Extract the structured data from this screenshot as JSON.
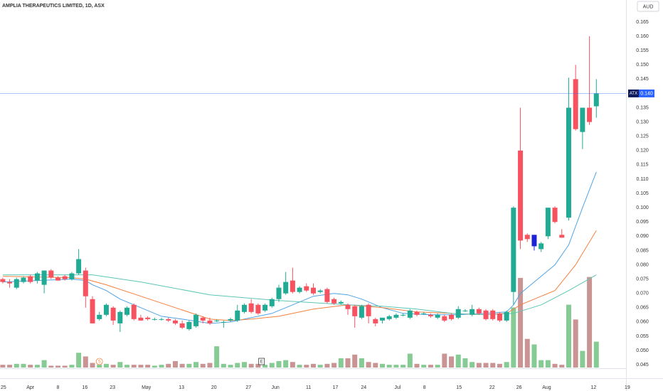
{
  "chart_data": {
    "type": "candlestick",
    "title": "AMPLIA THERAPEUTICS LIMITED, 1D, ASX",
    "currency": "AUD",
    "symbol_tag": "ATX",
    "last_price": 0.14,
    "last_price_label": "0.140",
    "last_price_color": "#2962ff",
    "up_color": "#22ab94",
    "down_color": "#f7525f",
    "volume_up_color": "rgba(34,160,60,0.55)",
    "volume_down_color": "rgba(160,60,60,0.55)",
    "highlight": {
      "index": 77,
      "color": "#1e22d6"
    },
    "xlim": [
      -0.4,
      90.3
    ],
    "xticks": [
      {
        "value": 0.1,
        "label": "25"
      },
      {
        "value": 4.0,
        "label": "Apr"
      },
      {
        "value": 8.0,
        "label": "8"
      },
      {
        "value": 11.9,
        "label": "16"
      },
      {
        "value": 15.9,
        "label": "23"
      },
      {
        "value": 20.8,
        "label": "May"
      },
      {
        "value": 25.9,
        "label": "13"
      },
      {
        "value": 30.6,
        "label": "20"
      },
      {
        "value": 35.6,
        "label": "27"
      },
      {
        "value": 39.5,
        "label": "Jun"
      },
      {
        "value": 44.3,
        "label": "11"
      },
      {
        "value": 48.2,
        "label": "17"
      },
      {
        "value": 52.3,
        "label": "24"
      },
      {
        "value": 57.2,
        "label": "Jul"
      },
      {
        "value": 61.1,
        "label": "8"
      },
      {
        "value": 66.1,
        "label": "15"
      },
      {
        "value": 70.9,
        "label": "22"
      },
      {
        "value": 74.8,
        "label": "26"
      },
      {
        "value": 78.8,
        "label": "Aug"
      },
      {
        "value": 85.6,
        "label": "12"
      },
      {
        "value": 90.5,
        "label": "19"
      }
    ],
    "ylim": [
      0.0433,
      0.1727
    ],
    "yticks": [
      0.045,
      {
        "value": 0.05,
        "label": "0.050"
      },
      0.055,
      {
        "value": 0.06,
        "label": "0.060"
      },
      0.065,
      {
        "value": 0.07,
        "label": "0.070"
      },
      0.075,
      {
        "value": 0.08,
        "label": "0.080"
      },
      0.085,
      {
        "value": 0.09,
        "label": "0.090"
      },
      0.095,
      {
        "value": 0.1,
        "label": "0.100"
      },
      0.105,
      {
        "value": 0.11,
        "label": "0.110"
      },
      0.115,
      {
        "value": 0.12,
        "label": "0.120"
      },
      0.125,
      {
        "value": 0.13,
        "label": "0.130"
      },
      0.135,
      {
        "value": 0.14,
        "label": "0.140"
      },
      0.145,
      {
        "value": 0.15,
        "label": "0.150"
      },
      0.155,
      {
        "value": 0.16,
        "label": "0.160"
      },
      0.165
    ],
    "open": [
      0.075,
      0.074,
      0.072,
      0.074,
      0.076,
      0.0745,
      0.073,
      0.078,
      0.0755,
      0.076,
      0.075,
      0.077,
      0.078,
      0.068,
      0.061,
      0.0625,
      0.065,
      0.0595,
      0.0625,
      0.066,
      0.0615,
      0.0615,
      0.061,
      0.061,
      0.061,
      0.0605,
      0.0595,
      0.0575,
      0.0585,
      0.0615,
      0.0605,
      0.0605,
      0.06,
      0.0605,
      0.0605,
      0.0635,
      0.0665,
      0.066,
      0.064,
      0.0655,
      0.068,
      0.07,
      0.0745,
      0.0705,
      0.0725,
      0.072,
      0.0705,
      0.0715,
      0.068,
      0.0665,
      0.066,
      0.0655,
      0.0615,
      0.066,
      0.061,
      0.0605,
      0.061,
      0.0615,
      0.0625,
      0.0615,
      0.0635,
      0.063,
      0.0625,
      0.0615,
      0.062,
      0.0625,
      0.0615,
      0.064,
      0.0625,
      0.0645,
      0.064,
      0.064,
      0.063,
      0.0605,
      0.0705,
      0.12,
      0.0905,
      0.0865,
      0.0855,
      0.09,
      0.1,
      0.0905,
      0.0965,
      0.145,
      0.1265,
      0.135,
      0.1355
    ],
    "high": [
      0.0755,
      0.075,
      0.0755,
      0.076,
      0.0765,
      0.0775,
      0.078,
      0.0785,
      0.076,
      0.0765,
      0.0775,
      0.0855,
      0.079,
      0.069,
      0.0635,
      0.0665,
      0.0655,
      0.064,
      0.0655,
      0.0665,
      0.0625,
      0.062,
      0.0615,
      0.0615,
      0.0615,
      0.061,
      0.0605,
      0.0605,
      0.063,
      0.062,
      0.0615,
      0.061,
      0.0605,
      0.0615,
      0.066,
      0.0665,
      0.068,
      0.0665,
      0.0665,
      0.0685,
      0.073,
      0.0775,
      0.079,
      0.0725,
      0.0735,
      0.0735,
      0.0715,
      0.072,
      0.0685,
      0.0675,
      0.0665,
      0.066,
      0.066,
      0.0665,
      0.0615,
      0.0615,
      0.0625,
      0.063,
      0.063,
      0.0645,
      0.064,
      0.0635,
      0.063,
      0.063,
      0.0625,
      0.063,
      0.0655,
      0.0645,
      0.066,
      0.065,
      0.0645,
      0.0645,
      0.0635,
      0.064,
      0.1005,
      0.135,
      0.091,
      0.0905,
      0.088,
      0.1,
      0.1005,
      0.0925,
      0.1455,
      0.15,
      0.135,
      0.16,
      0.145
    ],
    "low": [
      0.0735,
      0.072,
      0.0715,
      0.0735,
      0.0735,
      0.0735,
      0.07,
      0.075,
      0.0745,
      0.0745,
      0.0745,
      0.0765,
      0.065,
      0.0595,
      0.0605,
      0.062,
      0.059,
      0.0565,
      0.062,
      0.0605,
      0.0605,
      0.0605,
      0.0605,
      0.0605,
      0.06,
      0.059,
      0.0575,
      0.057,
      0.058,
      0.0595,
      0.059,
      0.06,
      0.058,
      0.06,
      0.06,
      0.063,
      0.063,
      0.0625,
      0.0635,
      0.065,
      0.067,
      0.0695,
      0.07,
      0.07,
      0.0705,
      0.0695,
      0.07,
      0.0665,
      0.066,
      0.066,
      0.0625,
      0.058,
      0.061,
      0.0595,
      0.0585,
      0.0595,
      0.0605,
      0.061,
      0.062,
      0.061,
      0.062,
      0.0625,
      0.0615,
      0.061,
      0.06,
      0.0605,
      0.061,
      0.0635,
      0.062,
      0.0625,
      0.0605,
      0.0605,
      0.06,
      0.06,
      0.066,
      0.0855,
      0.088,
      0.085,
      0.0845,
      0.089,
      0.0945,
      0.0895,
      0.0955,
      0.127,
      0.1205,
      0.129,
      0.1315
    ],
    "close": [
      0.074,
      0.0735,
      0.075,
      0.0755,
      0.074,
      0.077,
      0.078,
      0.0755,
      0.0745,
      0.075,
      0.077,
      0.082,
      0.069,
      0.0595,
      0.0625,
      0.066,
      0.0605,
      0.0635,
      0.065,
      0.061,
      0.0605,
      0.061,
      0.061,
      0.061,
      0.0605,
      0.0595,
      0.058,
      0.06,
      0.0625,
      0.0605,
      0.0595,
      0.0605,
      0.06,
      0.061,
      0.064,
      0.066,
      0.0635,
      0.063,
      0.066,
      0.068,
      0.072,
      0.074,
      0.0705,
      0.072,
      0.071,
      0.07,
      0.071,
      0.067,
      0.0665,
      0.067,
      0.0645,
      0.062,
      0.0655,
      0.062,
      0.0595,
      0.0615,
      0.062,
      0.0625,
      0.0625,
      0.064,
      0.0625,
      0.063,
      0.062,
      0.0625,
      0.0605,
      0.061,
      0.0645,
      0.064,
      0.0645,
      0.063,
      0.061,
      0.061,
      0.0605,
      0.0635,
      0.1,
      0.0885,
      0.089,
      0.0905,
      0.0875,
      0.1,
      0.095,
      0.0895,
      0.135,
      0.1275,
      0.135,
      0.13,
      0.14
    ],
    "vlim": [
      0,
      100
    ],
    "volume": [
      3,
      3,
      4,
      4,
      3,
      3,
      8,
      2,
      2,
      2,
      3,
      16,
      12,
      5,
      3,
      4,
      3,
      6,
      3,
      3,
      3,
      3,
      2,
      3,
      4,
      7,
      4,
      4,
      6,
      4,
      5,
      23,
      4,
      3,
      5,
      6,
      4,
      4,
      3,
      5,
      7,
      8,
      6,
      3,
      3,
      4,
      3,
      4,
      5,
      10,
      10,
      14,
      10,
      6,
      5,
      4,
      3,
      3,
      3,
      15,
      4,
      3,
      3,
      3,
      15,
      12,
      14,
      10,
      6,
      5,
      5,
      5,
      4,
      6,
      65,
      97,
      31,
      25,
      8,
      8,
      4,
      3,
      68,
      52,
      18,
      98,
      28
    ],
    "ma": [
      {
        "color": "#4ea3e6",
        "x": [
          0,
          5,
          10,
          12,
          13,
          15,
          17,
          20,
          23,
          26,
          30,
          33,
          36,
          39,
          42,
          45,
          48,
          50,
          52,
          55,
          58,
          62,
          66,
          70,
          73,
          74,
          75,
          78,
          80,
          82,
          84,
          86
        ],
        "values": [
          0.074,
          0.0745,
          0.075,
          0.0745,
          0.073,
          0.071,
          0.068,
          0.065,
          0.062,
          0.061,
          0.0595,
          0.06,
          0.0615,
          0.063,
          0.066,
          0.069,
          0.07,
          0.0695,
          0.068,
          0.065,
          0.063,
          0.0625,
          0.0625,
          0.063,
          0.0635,
          0.066,
          0.07,
          0.076,
          0.08,
          0.087,
          0.1,
          0.1125
        ]
      },
      {
        "color": "#f5803e",
        "x": [
          0,
          10,
          12,
          15,
          20,
          25,
          30,
          33,
          36,
          40,
          45,
          50,
          55,
          60,
          65,
          70,
          73,
          75,
          78,
          80,
          83,
          86
        ],
        "values": [
          0.076,
          0.0755,
          0.075,
          0.073,
          0.069,
          0.065,
          0.061,
          0.0605,
          0.061,
          0.062,
          0.0645,
          0.066,
          0.065,
          0.0635,
          0.063,
          0.0625,
          0.063,
          0.066,
          0.069,
          0.071,
          0.08,
          0.092
        ]
      },
      {
        "color": "#5cc6b4",
        "x": [
          0,
          10,
          13,
          20,
          30,
          40,
          50,
          55,
          60,
          65,
          70,
          74,
          78,
          82,
          86
        ],
        "values": [
          0.0765,
          0.0765,
          0.0765,
          0.074,
          0.0695,
          0.0675,
          0.066,
          0.0655,
          0.0645,
          0.063,
          0.0625,
          0.063,
          0.066,
          0.071,
          0.0765
        ]
      }
    ],
    "events": [
      {
        "x": 14,
        "text": "S",
        "color": "#f5803e"
      },
      {
        "x": 37.5,
        "text": "E",
        "color": "#333333"
      }
    ]
  }
}
